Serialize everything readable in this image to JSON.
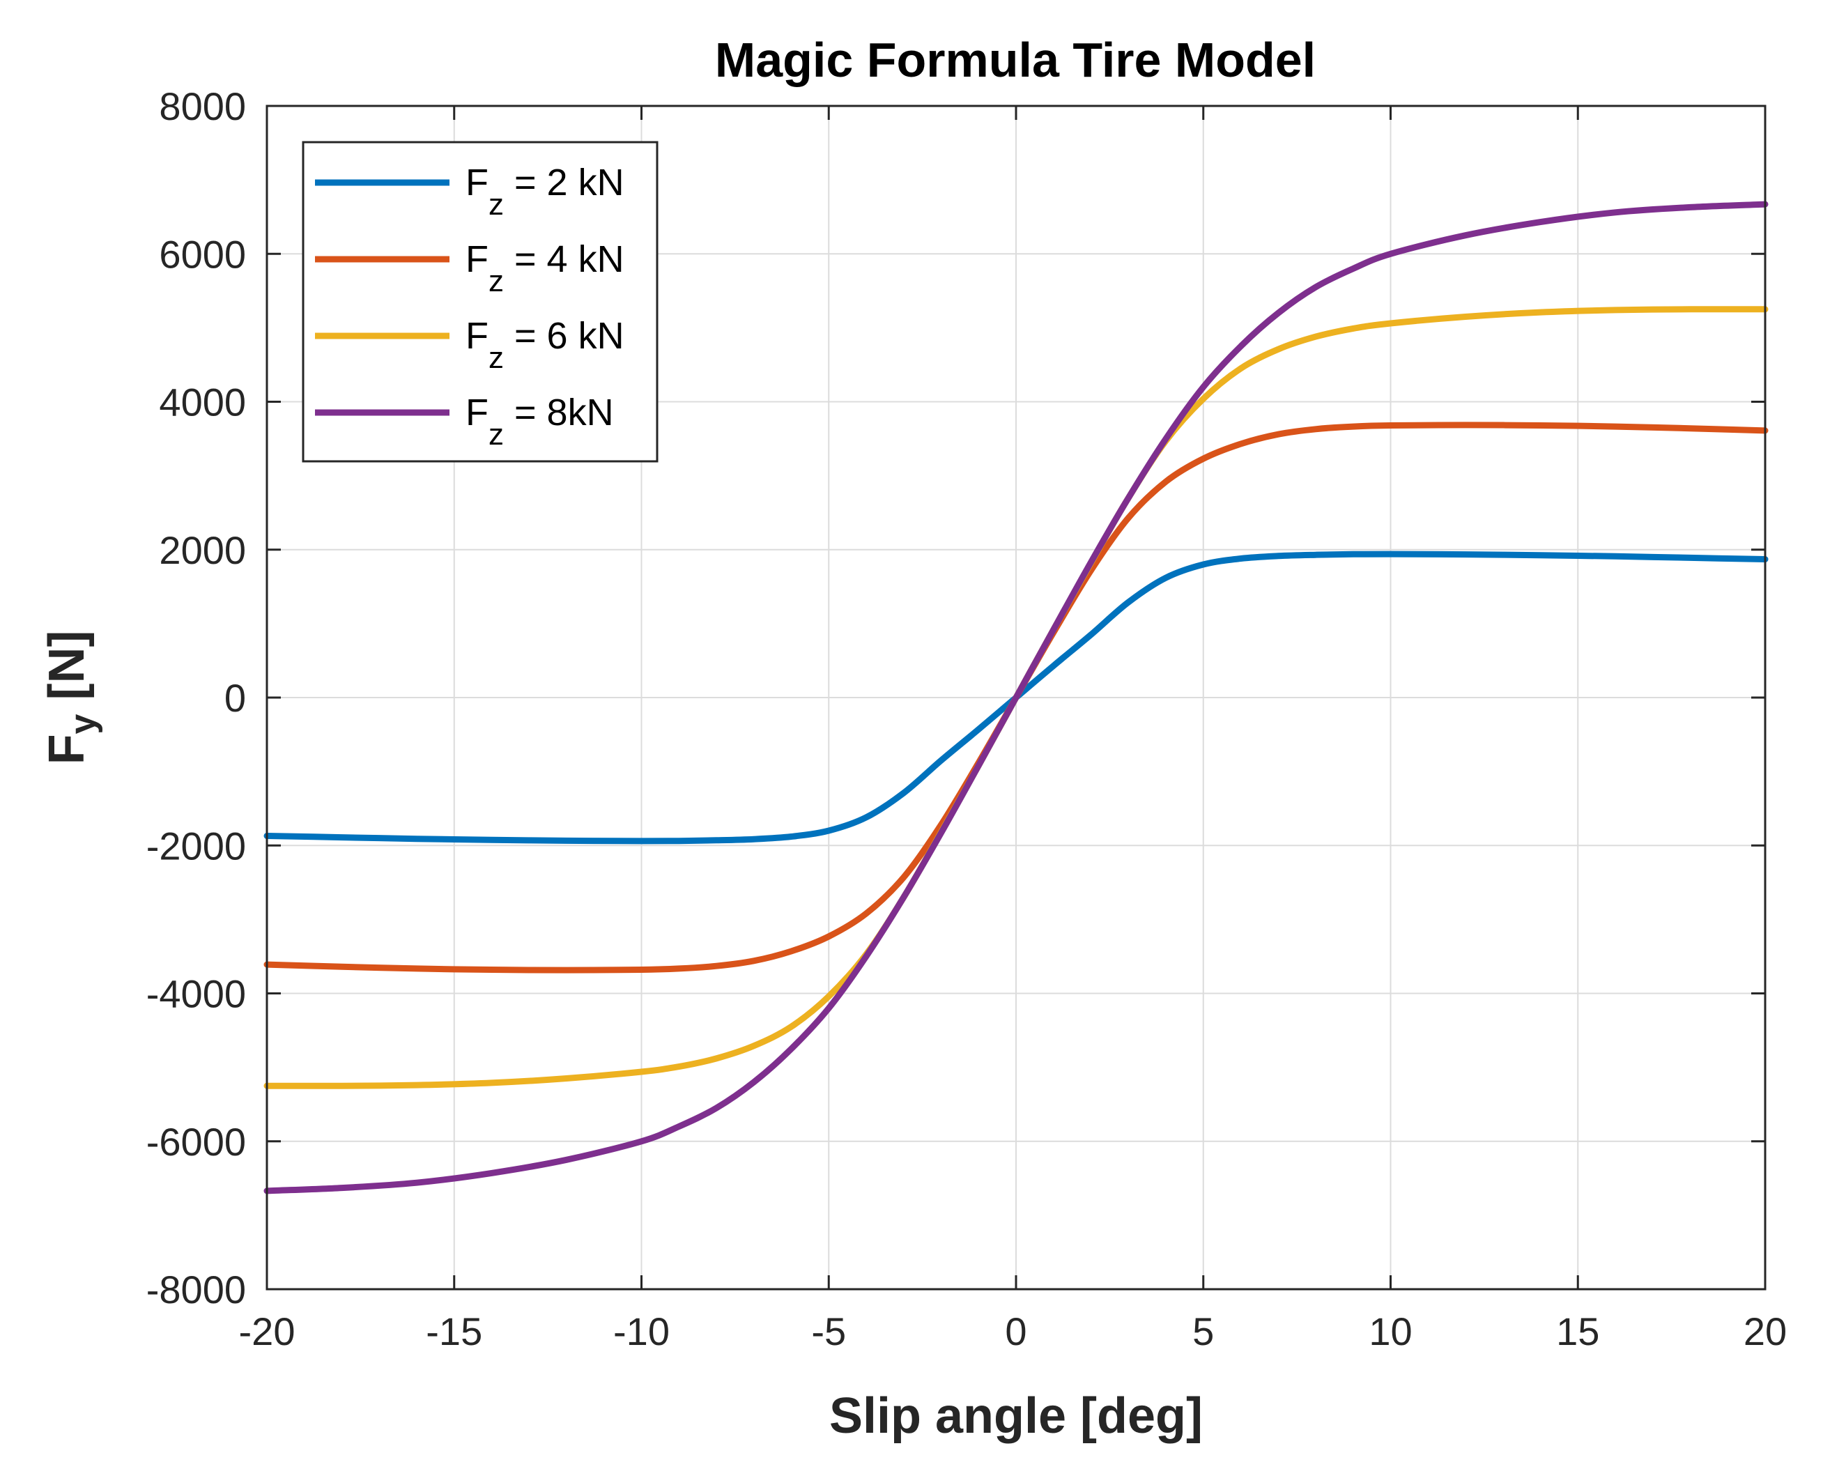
{
  "chart_data": {
    "type": "line",
    "title": "Magic Formula Tire Model",
    "xlabel": "Slip angle [deg]",
    "ylabel": {
      "main": "F",
      "sub": "y",
      "rest": " [N]"
    },
    "xlim": [
      -20,
      20
    ],
    "ylim": [
      -8000,
      8000
    ],
    "xticks": [
      -20,
      -15,
      -10,
      -5,
      0,
      5,
      10,
      15,
      20
    ],
    "yticks": [
      -8000,
      -6000,
      -4000,
      -2000,
      0,
      2000,
      4000,
      6000,
      8000
    ],
    "grid": true,
    "legend_position": "top-left",
    "x": [
      -20,
      -18,
      -16,
      -14,
      -12,
      -10,
      -9,
      -8,
      -7,
      -6,
      -5,
      -4,
      -3,
      -2,
      -1,
      0,
      1,
      2,
      3,
      4,
      5,
      6,
      7,
      8,
      9,
      10,
      12,
      14,
      16,
      18,
      20
    ],
    "series": [
      {
        "name": "Fz = 2 kN",
        "label_main": "F",
        "label_sub": "z",
        "label_rest": " = 2 kN",
        "color": "#0072BD",
        "values": [
          -1870,
          -1890,
          -1910,
          -1925,
          -1935,
          -1940,
          -1938,
          -1930,
          -1915,
          -1880,
          -1800,
          -1620,
          -1290,
          -850,
          -430,
          0,
          430,
          850,
          1290,
          1620,
          1800,
          1880,
          1915,
          1930,
          1938,
          1940,
          1935,
          1925,
          1910,
          1890,
          1870
        ]
      },
      {
        "name": "Fz = 4 kN",
        "label_main": "F",
        "label_sub": "z",
        "label_rest": " = 4 kN",
        "color": "#D95319",
        "values": [
          -3610,
          -3640,
          -3665,
          -3680,
          -3685,
          -3680,
          -3665,
          -3630,
          -3560,
          -3430,
          -3230,
          -2920,
          -2430,
          -1720,
          -880,
          0,
          880,
          1720,
          2430,
          2920,
          3230,
          3430,
          3560,
          3630,
          3665,
          3680,
          3685,
          3680,
          3665,
          3640,
          3610
        ]
      },
      {
        "name": "Fz = 6 kN",
        "label_main": "F",
        "label_sub": "z",
        "label_rest": " = 6 kN",
        "color": "#EDB120",
        "values": [
          -5250,
          -5250,
          -5240,
          -5210,
          -5150,
          -5060,
          -4990,
          -4880,
          -4710,
          -4450,
          -4040,
          -3470,
          -2700,
          -1820,
          -920,
          0,
          920,
          1820,
          2700,
          3470,
          4040,
          4450,
          4710,
          4880,
          4990,
          5060,
          5150,
          5210,
          5240,
          5250,
          5250
        ]
      },
      {
        "name": "Fz = 8kN",
        "label_main": "F",
        "label_sub": "z",
        "label_rest": " = 8kN",
        "color": "#7E2F8E",
        "values": [
          -6670,
          -6630,
          -6560,
          -6430,
          -6250,
          -6000,
          -5800,
          -5550,
          -5200,
          -4750,
          -4200,
          -3500,
          -2700,
          -1830,
          -920,
          0,
          920,
          1830,
          2700,
          3500,
          4200,
          4750,
          5200,
          5550,
          5800,
          6000,
          6250,
          6430,
          6560,
          6630,
          6670
        ]
      }
    ]
  }
}
